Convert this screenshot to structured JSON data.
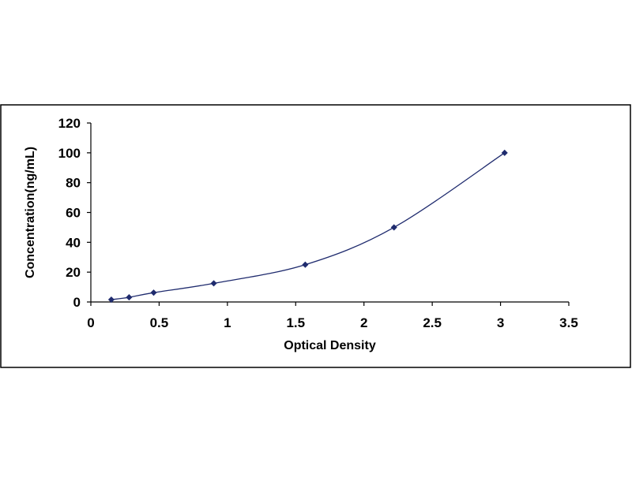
{
  "chart_data": {
    "type": "scatter",
    "title": "",
    "xlabel": "Optical Density",
    "ylabel": "Concentration(ng/mL)",
    "xlim": [
      0,
      3.5
    ],
    "ylim": [
      0,
      120
    ],
    "xticks": [
      "0",
      "0.5",
      "1",
      "1.5",
      "2",
      "2.5",
      "3",
      "3.5"
    ],
    "yticks": [
      "0",
      "20",
      "40",
      "60",
      "80",
      "100",
      "120"
    ],
    "grid": false,
    "legend": "none",
    "series": [
      {
        "points": [
          {
            "x": 0.15,
            "y": 1.56
          },
          {
            "x": 0.28,
            "y": 3.13
          },
          {
            "x": 0.46,
            "y": 6.25
          },
          {
            "x": 0.9,
            "y": 12.5
          },
          {
            "x": 1.57,
            "y": 25
          },
          {
            "x": 2.22,
            "y": 50
          },
          {
            "x": 3.03,
            "y": 100
          }
        ],
        "trendline": "smooth curve",
        "color": "#1f2b6e"
      }
    ]
  }
}
